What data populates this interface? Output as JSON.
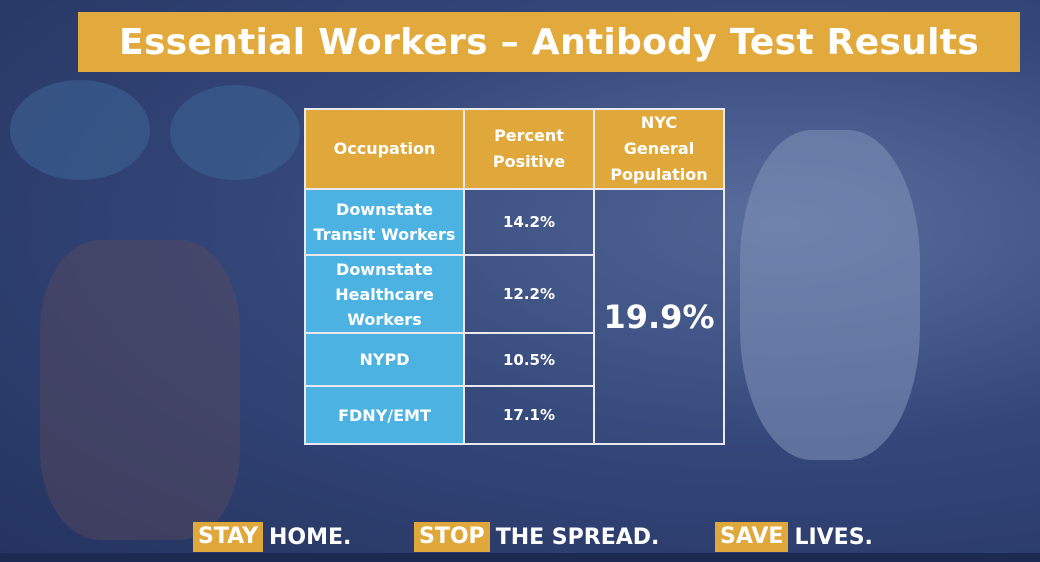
{
  "title": "Essential Workers – Antibody Test Results",
  "table": {
    "header": [
      "Occupation",
      "Percent Positive",
      "NYC General Population"
    ],
    "rows": [
      [
        "Downstate Transit Workers",
        "14.2%"
      ],
      [
        "Downstate Healthcare Workers",
        "12.2%"
      ],
      [
        "NYPD",
        "10.5%"
      ],
      [
        "FDNY/EMT",
        "17.1%"
      ]
    ],
    "general_population": "19.9%"
  },
  "footer": [
    {
      "highlight": "STAY",
      "text": "HOME."
    },
    {
      "highlight": "STOP",
      "text": "THE SPREAD."
    },
    {
      "highlight": "SAVE",
      "text": "LIVES."
    }
  ]
}
